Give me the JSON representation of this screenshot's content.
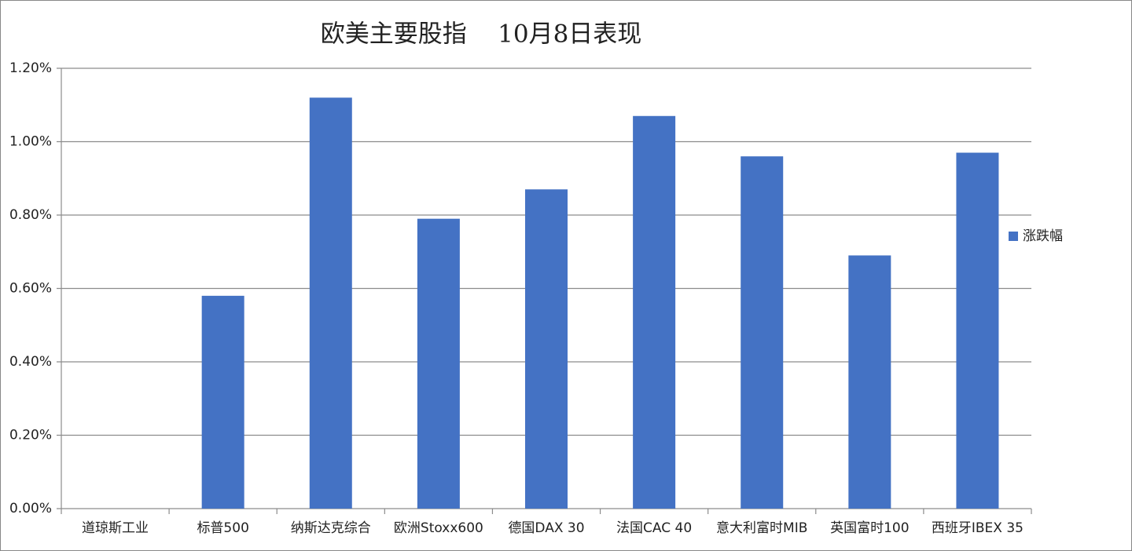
{
  "chart_data": {
    "type": "bar",
    "title": "欧美主要股指    10月8日表现",
    "categories": [
      "道琼斯工业",
      "标普500",
      "纳斯达克综合",
      "欧洲Stoxx600",
      "德国DAX 30",
      "法国CAC 40",
      "意大利富时MIB",
      "英国富时100",
      "西班牙IBEX 35"
    ],
    "series": [
      {
        "name": "涨跌幅",
        "color": "#4472c4",
        "values": [
          0,
          0.58,
          1.12,
          0.79,
          0.87,
          1.07,
          0.96,
          0.69,
          0.97
        ]
      }
    ],
    "ylim": [
      0,
      1.2
    ],
    "yticks": [
      {
        "value": 0,
        "label": "0.00%"
      },
      {
        "value": 0.2,
        "label": "0.20%"
      },
      {
        "value": 0.4,
        "label": "0.40%"
      },
      {
        "value": 0.6,
        "label": "0.60%"
      },
      {
        "value": 0.8,
        "label": "0.80%"
      },
      {
        "value": 1.0,
        "label": "1.00%"
      },
      {
        "value": 1.2,
        "label": "1.20%"
      }
    ],
    "grid": true,
    "legend": "right"
  }
}
